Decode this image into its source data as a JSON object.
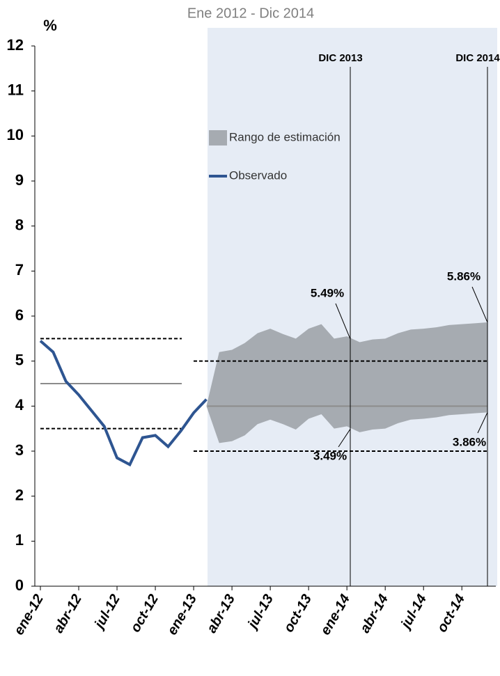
{
  "chart_data": {
    "type": "line",
    "title": "Ene 2012 - Dic 2014",
    "y_label": "%",
    "categories": [
      "ene-12",
      null,
      null,
      "abr-12",
      null,
      null,
      "jul-12",
      null,
      null,
      "oct-12",
      null,
      null,
      "ene-13",
      null,
      null,
      "abr-13",
      null,
      null,
      "jul-13",
      null,
      null,
      "oct-13",
      null,
      null,
      "ene-14",
      null,
      null,
      "abr-14",
      null,
      null,
      "jul-14",
      null,
      null,
      "oct-14",
      null,
      null
    ],
    "ylim": [
      0,
      12
    ],
    "yticks": [
      0,
      1,
      2,
      3,
      4,
      5,
      6,
      7,
      8,
      9,
      10,
      11,
      12
    ],
    "series": [
      {
        "name": "Observado",
        "color": "#2e5591",
        "values": [
          5.45,
          5.2,
          4.55,
          4.25,
          3.9,
          3.55,
          2.85,
          2.7,
          3.3,
          3.35,
          3.1,
          3.45,
          3.85,
          4.15,
          null,
          null,
          null,
          null,
          null,
          null,
          null,
          null,
          null,
          null,
          null,
          null,
          null,
          null,
          null,
          null,
          null,
          null,
          null,
          null,
          null,
          null
        ]
      },
      {
        "name": "Rango de estimación",
        "color": "#a6abb1",
        "lower": [
          null,
          null,
          null,
          null,
          null,
          null,
          null,
          null,
          null,
          null,
          null,
          null,
          null,
          4.0,
          3.18,
          3.22,
          3.35,
          3.6,
          3.7,
          3.6,
          3.48,
          3.72,
          3.82,
          3.5,
          3.55,
          3.42,
          3.48,
          3.5,
          3.62,
          3.7,
          3.72,
          3.75,
          3.8,
          3.82,
          3.84,
          3.86
        ],
        "values": [
          null,
          null,
          null,
          null,
          null,
          null,
          null,
          null,
          null,
          null,
          null,
          null,
          null,
          4.0,
          5.2,
          5.25,
          5.4,
          5.62,
          5.72,
          5.6,
          5.5,
          5.72,
          5.82,
          5.5,
          5.55,
          5.42,
          5.48,
          5.5,
          5.62,
          5.7,
          5.72,
          5.75,
          5.8,
          5.82,
          5.84,
          5.86
        ]
      }
    ],
    "reference_lines_first": [
      {
        "value": 5.5,
        "dashed": true
      },
      {
        "value": 4.5,
        "dashed": false
      },
      {
        "value": 3.5,
        "dashed": true
      }
    ],
    "reference_lines_second": [
      {
        "value": 5.0,
        "dashed": true
      },
      {
        "value": 4.0,
        "dashed": false
      },
      {
        "value": 3.0,
        "dashed": true
      }
    ],
    "vlines": [
      "DIC 2013",
      "DIC 2014"
    ],
    "annotations": [
      {
        "value": 5.49,
        "label": "5.49%"
      },
      {
        "value": 3.49,
        "label": "3.49%"
      },
      {
        "value": 5.86,
        "label": "5.86%"
      },
      {
        "value": 3.86,
        "label": "3.86%"
      }
    ]
  }
}
